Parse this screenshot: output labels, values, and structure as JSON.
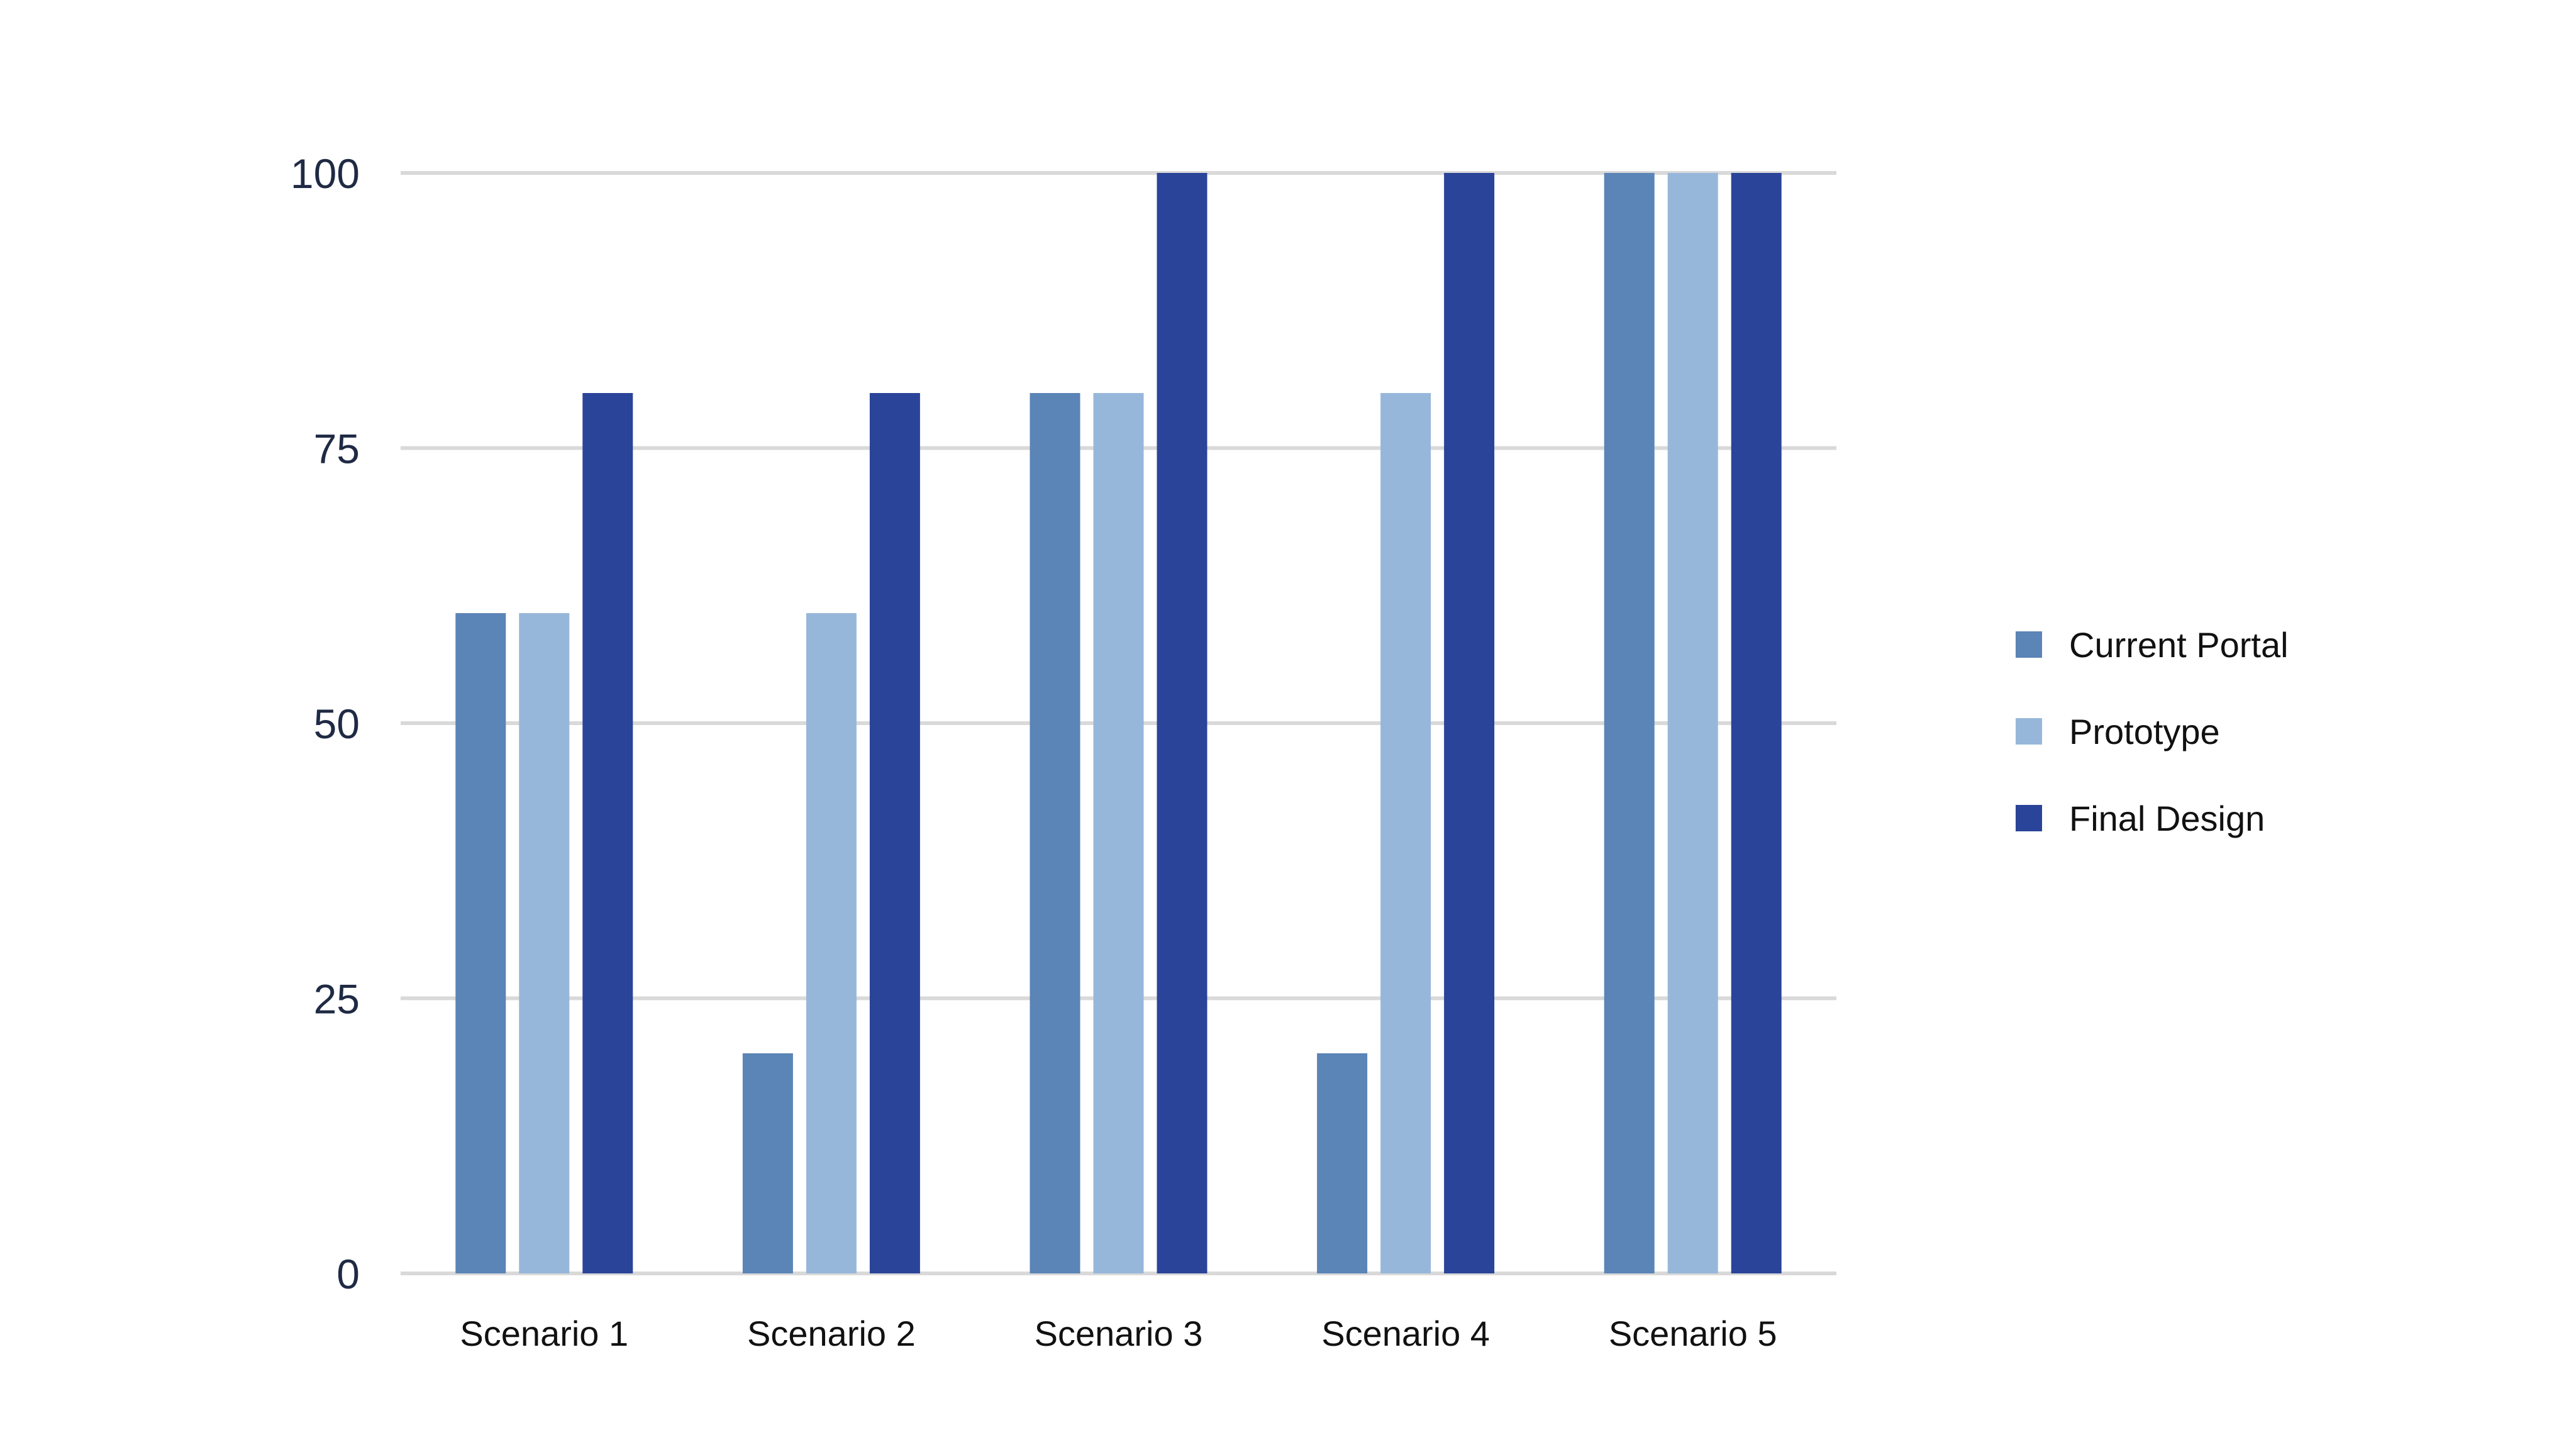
{
  "chart_data": {
    "type": "bar",
    "title": "",
    "xlabel": "",
    "ylabel": "",
    "categories": [
      "Scenario 1",
      "Scenario 2",
      "Scenario 3",
      "Scenario 4",
      "Scenario 5"
    ],
    "ylim": [
      0,
      100
    ],
    "yticks": [
      0,
      25,
      50,
      75,
      100
    ],
    "grid": true,
    "legend_position": "right",
    "series": [
      {
        "name": "Current Portal",
        "color": "#5b84b7",
        "values": [
          60,
          20,
          80,
          20,
          100
        ]
      },
      {
        "name": "Prototype",
        "color": "#97b7da",
        "values": [
          60,
          60,
          80,
          80,
          100
        ]
      },
      {
        "name": "Final Design",
        "color": "#2a4499",
        "values": [
          80,
          80,
          100,
          100,
          100
        ]
      }
    ]
  }
}
